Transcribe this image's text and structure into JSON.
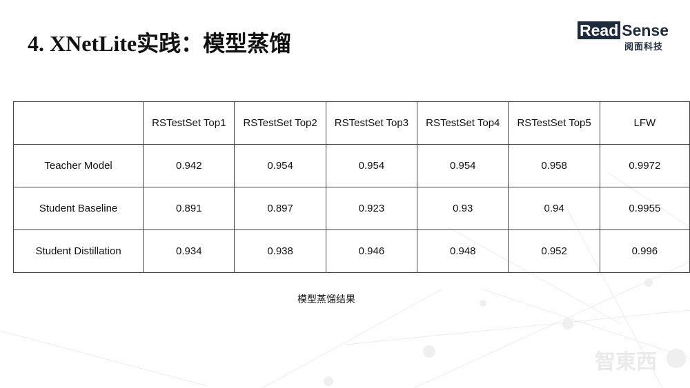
{
  "title": "4. XNetLite实践：模型蒸馏",
  "logo": {
    "box_text": "Read",
    "text": "Sense",
    "subtitle": "阅面科技"
  },
  "table": {
    "headers": [
      "",
      "RSTestSet Top1",
      "RSTestSet Top2",
      "RSTestSet Top3",
      "RSTestSet Top4",
      "RSTestSet Top5",
      "LFW"
    ],
    "rows": [
      [
        "Teacher Model",
        "0.942",
        "0.954",
        "0.954",
        "0.954",
        "0.958",
        "0.9972"
      ],
      [
        "Student Baseline",
        "0.891",
        "0.897",
        "0.923",
        "0.93",
        "0.94",
        "0.9955"
      ],
      [
        "Student Distillation",
        "0.934",
        "0.938",
        "0.946",
        "0.948",
        "0.952",
        "0.996"
      ]
    ]
  },
  "caption": "模型蒸馏结果",
  "watermark": "智東西"
}
